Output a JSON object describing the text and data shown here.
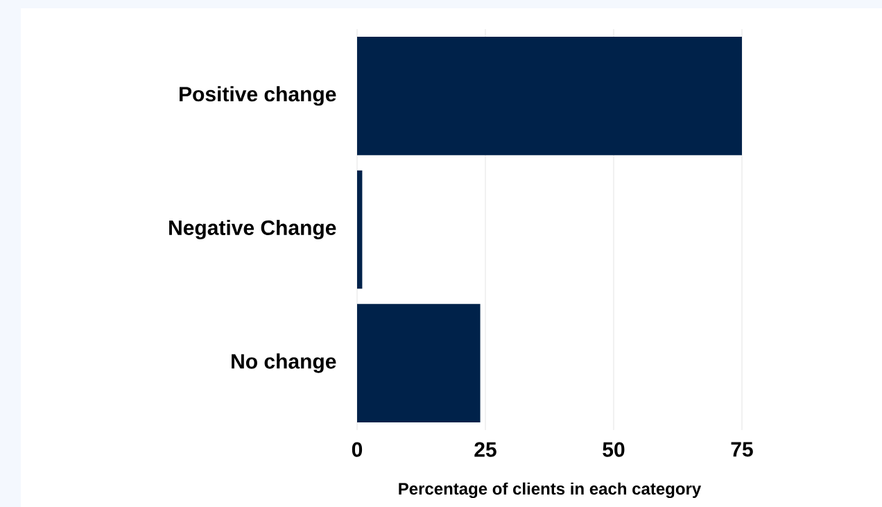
{
  "chart_data": {
    "type": "bar",
    "orientation": "horizontal",
    "categories": [
      "Positive change",
      "Negative Change",
      "No change"
    ],
    "values": [
      75,
      1,
      24
    ],
    "color": "#00224a",
    "xlim": [
      0,
      75
    ],
    "xticks": [
      0,
      25,
      50,
      75
    ],
    "grid": "x",
    "xlabel": "Percentage of clients in each category"
  }
}
